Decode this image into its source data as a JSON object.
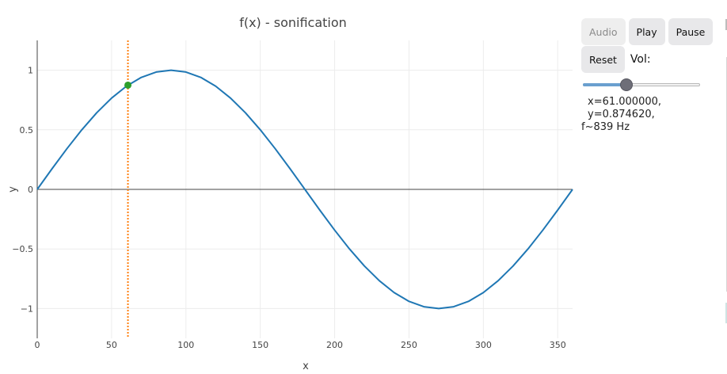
{
  "chart_data": {
    "type": "line",
    "title": "f(x) - sonification",
    "xlabel": "x",
    "ylabel": "y",
    "xlim": [
      0,
      360
    ],
    "ylim": [
      -1.25,
      1.25
    ],
    "x_ticks": [
      0,
      50,
      100,
      150,
      200,
      250,
      300,
      350
    ],
    "y_ticks": [
      1,
      0.5,
      0,
      -0.5,
      -1
    ],
    "x_tick_labels": [
      "0",
      "50",
      "100",
      "150",
      "200",
      "250",
      "300",
      "350"
    ],
    "y_tick_labels": [
      "1",
      "0.5",
      "0",
      "−0.5",
      "−1"
    ],
    "grid": true,
    "series": [
      {
        "color": "#1f77b4",
        "x": [
          0,
          10,
          20,
          30,
          40,
          50,
          60,
          70,
          80,
          90,
          100,
          110,
          120,
          130,
          140,
          150,
          160,
          170,
          180,
          190,
          200,
          210,
          220,
          230,
          240,
          250,
          260,
          270,
          280,
          290,
          300,
          310,
          320,
          330,
          340,
          350,
          360
        ],
        "y": [
          0,
          0.1736,
          0.342,
          0.5,
          0.6428,
          0.766,
          0.866,
          0.9397,
          0.9848,
          1,
          0.9848,
          0.9397,
          0.866,
          0.766,
          0.6428,
          0.5,
          0.342,
          0.1736,
          0,
          -0.1736,
          -0.342,
          -0.5,
          -0.6428,
          -0.766,
          -0.866,
          -0.9397,
          -0.9848,
          -1,
          -0.9848,
          -0.9397,
          -0.866,
          -0.766,
          -0.6428,
          -0.5,
          -0.342,
          -0.1736,
          0
        ]
      }
    ],
    "cursor": {
      "x": 61,
      "y": 0.87462,
      "line_color": "#ff7f0e",
      "marker_color": "#2ca02c"
    }
  },
  "controls": {
    "audio_label": "Audio",
    "play_label": "Play",
    "pause_label": "Pause",
    "reset_label": "Reset",
    "vol_label": "Vol:",
    "volume": 0.37,
    "readout_line1": "x=61.000000, y=0.874620,",
    "readout_line2": "f~839 Hz"
  }
}
